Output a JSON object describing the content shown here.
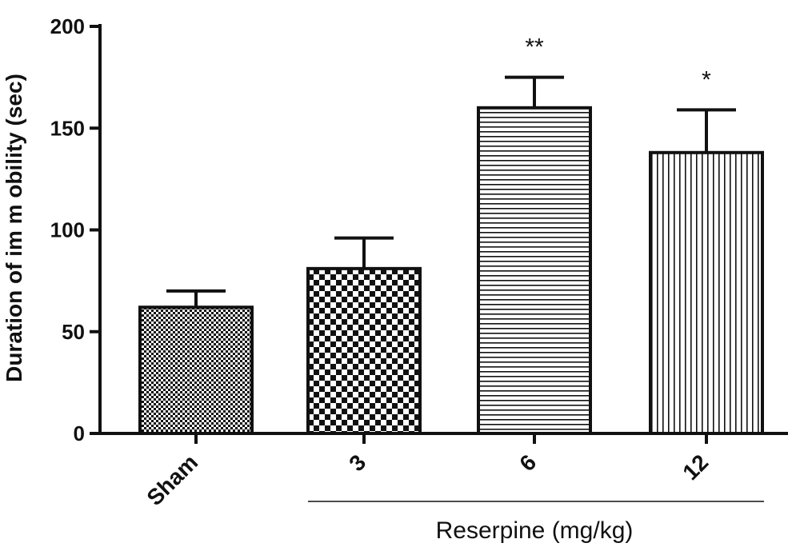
{
  "chart_data": {
    "type": "bar",
    "title": "",
    "xlabel": "",
    "ylabel": "Duration of im m obility (sec)",
    "ylim": [
      0,
      200
    ],
    "yticks": [
      0,
      50,
      100,
      150,
      200
    ],
    "grid": false,
    "legend": "none",
    "categories": [
      "Sham",
      "3",
      "6",
      "12"
    ],
    "values": [
      62,
      81,
      160,
      138
    ],
    "errors": [
      8,
      15,
      15,
      21
    ],
    "significance": [
      "",
      "",
      "**",
      "*"
    ],
    "fill_patterns": [
      "fine-checker",
      "checker",
      "horizontal-stripes",
      "vertical-stripes"
    ],
    "group_label": "Reserpine (mg/kg)",
    "group_categories": [
      "3",
      "6",
      "12"
    ],
    "colors": {
      "ink": "#111111",
      "background": "#ffffff"
    }
  }
}
